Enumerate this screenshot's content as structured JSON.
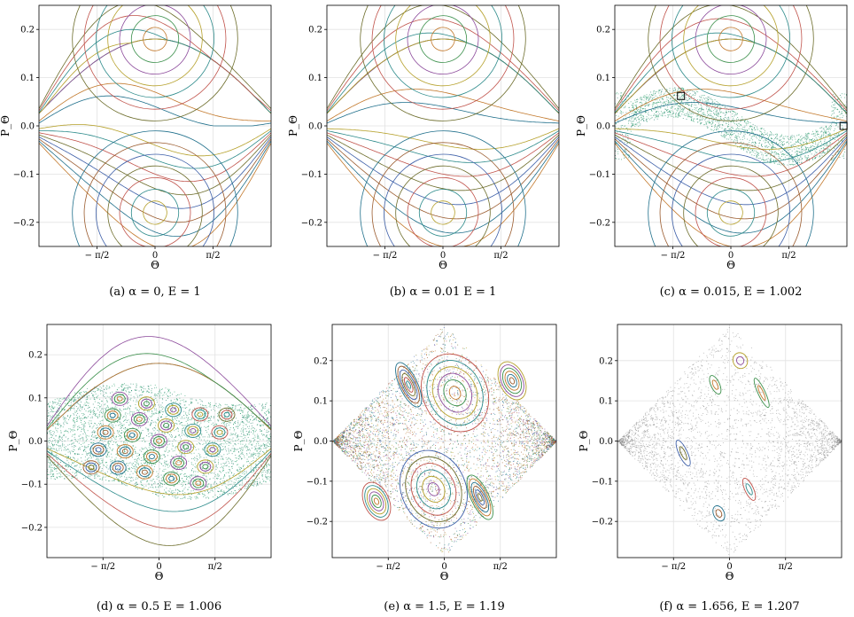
{
  "chart_data": [
    {
      "type": "scatter",
      "id": "a",
      "caption": "(a)  α = 0,  E = 1",
      "xlabel": "Θ",
      "ylabel": "P_Θ",
      "xlim": [
        -3.1416,
        3.1416
      ],
      "ylim": [
        -0.25,
        0.25
      ],
      "xticks": [
        {
          "v": -1.5708,
          "label": "− π/2"
        },
        {
          "v": 0,
          "label": "0"
        },
        {
          "v": 1.5708,
          "label": "π/2"
        }
      ],
      "yticks": [
        {
          "v": -0.2,
          "label": "−0.2"
        },
        {
          "v": -0.1,
          "label": "−0.1"
        },
        {
          "v": 0,
          "label": "0.0"
        },
        {
          "v": 0.1,
          "label": "0.1"
        },
        {
          "v": 0.2,
          "label": "0.2"
        }
      ],
      "grid": true,
      "alpha": 0,
      "energy": 1,
      "pmax": 0.25,
      "chaos": 0,
      "islands": [],
      "boxes": []
    },
    {
      "type": "scatter",
      "id": "b",
      "caption": "(b)  α = 0.01 E = 1",
      "xlabel": "Θ",
      "ylabel": "P_Θ",
      "xlim": [
        -3.1416,
        3.1416
      ],
      "ylim": [
        -0.25,
        0.25
      ],
      "xticks": [
        {
          "v": -1.5708,
          "label": "− π/2"
        },
        {
          "v": 0,
          "label": "0"
        },
        {
          "v": 1.5708,
          "label": "π/2"
        }
      ],
      "yticks": [
        {
          "v": -0.2,
          "label": "−0.2"
        },
        {
          "v": -0.1,
          "label": "−0.1"
        },
        {
          "v": 0,
          "label": "0.0"
        },
        {
          "v": 0.1,
          "label": "0.1"
        },
        {
          "v": 0.2,
          "label": "0.2"
        }
      ],
      "grid": true,
      "alpha": 0.01,
      "energy": 1,
      "pmax": 0.25,
      "chaos": 0,
      "islands": [],
      "boxes": []
    },
    {
      "type": "scatter",
      "id": "c",
      "caption": "(c)  α = 0.015,  E = 1.002",
      "xlabel": "Θ",
      "ylabel": "P_Θ",
      "xlim": [
        -3.1416,
        3.1416
      ],
      "ylim": [
        -0.25,
        0.25
      ],
      "xticks": [
        {
          "v": -1.5708,
          "label": "− π/2"
        },
        {
          "v": 0,
          "label": "0"
        },
        {
          "v": 1.5708,
          "label": "π/2"
        }
      ],
      "yticks": [
        {
          "v": -0.2,
          "label": "−0.2"
        },
        {
          "v": -0.1,
          "label": "−0.1"
        },
        {
          "v": 0,
          "label": "0.0"
        },
        {
          "v": 0.1,
          "label": "0.1"
        },
        {
          "v": 0.2,
          "label": "0.2"
        }
      ],
      "grid": true,
      "alpha": 0.015,
      "energy": 1.002,
      "pmax": 0.25,
      "chaos": 1,
      "islands": [],
      "boxes": [
        {
          "x": -1.35,
          "y": 0.062
        },
        {
          "x": 3.05,
          "y": 0.0
        }
      ]
    },
    {
      "type": "scatter",
      "id": "d",
      "caption": "(d)  α = 0.5 E = 1.006",
      "xlabel": "Θ",
      "ylabel": "P_Θ",
      "xlim": [
        -3.1416,
        3.1416
      ],
      "ylim": [
        -0.27,
        0.27
      ],
      "xticks": [
        {
          "v": -1.5708,
          "label": "− π/2"
        },
        {
          "v": 0,
          "label": "0"
        },
        {
          "v": 1.5708,
          "label": "π/2"
        }
      ],
      "yticks": [
        {
          "v": -0.2,
          "label": "−0.2"
        },
        {
          "v": -0.1,
          "label": "−0.1"
        },
        {
          "v": 0,
          "label": "0.0"
        },
        {
          "v": 0.1,
          "label": "0.1"
        },
        {
          "v": 0.2,
          "label": "0.2"
        }
      ],
      "grid": true,
      "alpha": 0.5,
      "energy": 1.006,
      "pmax": 0.27,
      "chaos": 2,
      "islands": [],
      "boxes": []
    },
    {
      "type": "scatter",
      "id": "e",
      "caption": "(e)  α = 1.5,  E = 1.19",
      "xlabel": "Θ",
      "ylabel": "P_Θ",
      "xlim": [
        -3.1416,
        3.1416
      ],
      "ylim": [
        -0.29,
        0.29
      ],
      "xticks": [
        {
          "v": -1.5708,
          "label": "− π/2"
        },
        {
          "v": 0,
          "label": "0"
        },
        {
          "v": 1.5708,
          "label": "π/2"
        }
      ],
      "yticks": [
        {
          "v": -0.2,
          "label": "−0.2"
        },
        {
          "v": -0.1,
          "label": "−0.1"
        },
        {
          "v": 0,
          "label": "0.0"
        },
        {
          "v": 0.1,
          "label": "0.1"
        },
        {
          "v": 0.2,
          "label": "0.2"
        }
      ],
      "grid": true,
      "alpha": 1.5,
      "energy": 1.19,
      "pmax": 0.29,
      "chaos": 3,
      "islands": [
        {
          "x": 0.3,
          "y": 0.12,
          "rx": 0.9,
          "ry": 0.1
        },
        {
          "x": -0.3,
          "y": -0.12,
          "rx": 0.9,
          "ry": 0.1
        },
        {
          "x": -1.0,
          "y": 0.14,
          "rx": 0.25,
          "ry": 0.06
        },
        {
          "x": 1.0,
          "y": -0.14,
          "rx": 0.25,
          "ry": 0.06
        },
        {
          "x": 1.9,
          "y": 0.15,
          "rx": 0.35,
          "ry": 0.05
        },
        {
          "x": -1.9,
          "y": -0.15,
          "rx": 0.35,
          "ry": 0.05
        }
      ],
      "boxes": []
    },
    {
      "type": "scatter",
      "id": "f",
      "caption": "(f)  α = 1.656,  E = 1.207",
      "xlabel": "Θ",
      "ylabel": "P_Θ",
      "xlim": [
        -3.1416,
        3.1416
      ],
      "ylim": [
        -0.29,
        0.29
      ],
      "xticks": [
        {
          "v": -1.5708,
          "label": "− π/2"
        },
        {
          "v": 0,
          "label": "0"
        },
        {
          "v": 1.5708,
          "label": "π/2"
        }
      ],
      "yticks": [
        {
          "v": -0.2,
          "label": "−0.2"
        },
        {
          "v": -0.1,
          "label": "−0.1"
        },
        {
          "v": 0,
          "label": "0.0"
        },
        {
          "v": 0.1,
          "label": "0.1"
        },
        {
          "v": 0.2,
          "label": "0.2"
        }
      ],
      "grid": true,
      "alpha": 1.656,
      "energy": 1.207,
      "pmax": 0.29,
      "chaos": 4,
      "islands": [
        {
          "x": -0.4,
          "y": 0.14,
          "rx": 0.12,
          "ry": 0.025
        },
        {
          "x": 0.3,
          "y": 0.2,
          "rx": 0.2,
          "ry": 0.02
        },
        {
          "x": 0.55,
          "y": -0.12,
          "rx": 0.12,
          "ry": 0.03
        },
        {
          "x": -1.3,
          "y": -0.03,
          "rx": 0.12,
          "ry": 0.035
        },
        {
          "x": -0.3,
          "y": -0.18,
          "rx": 0.15,
          "ry": 0.02
        },
        {
          "x": 0.9,
          "y": 0.12,
          "rx": 0.1,
          "ry": 0.04
        }
      ],
      "boxes": []
    }
  ]
}
